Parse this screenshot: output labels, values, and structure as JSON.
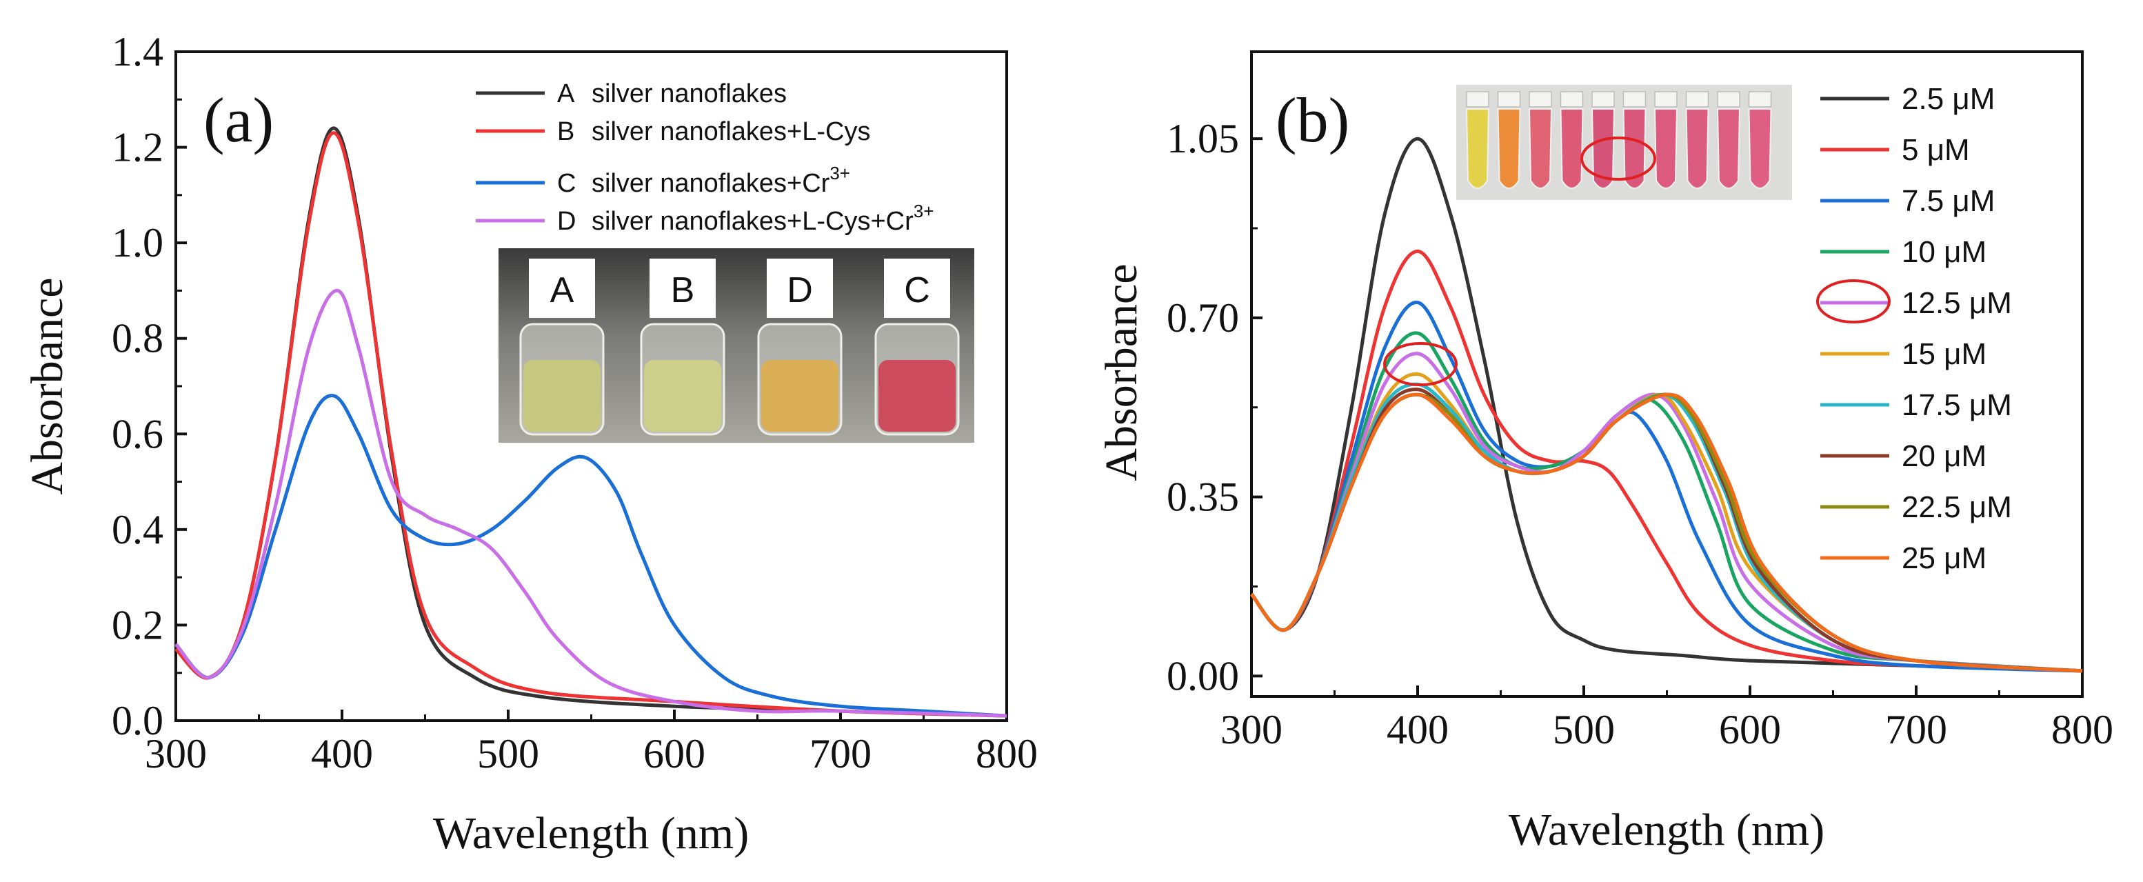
{
  "chart_data": [
    {
      "panel_label": "(a)",
      "type": "line",
      "xlabel": "Wavelength (nm)",
      "ylabel": "Absorbance",
      "xlim": [
        300,
        800
      ],
      "ylim": [
        0,
        1.4
      ],
      "xticks": [
        300,
        400,
        500,
        600,
        700,
        800
      ],
      "yticks": [
        0.0,
        0.2,
        0.4,
        0.6,
        0.8,
        1.0,
        1.2,
        1.4
      ],
      "grid": false,
      "legend_position": "top-right",
      "series": [
        {
          "name": "A",
          "label": "silver nanoflakes",
          "color": "#333333",
          "x": [
            300,
            320,
            340,
            360,
            380,
            395,
            410,
            430,
            450,
            480,
            520,
            600,
            700,
            800
          ],
          "y": [
            0.15,
            0.09,
            0.2,
            0.55,
            1.05,
            1.24,
            1.05,
            0.55,
            0.2,
            0.09,
            0.05,
            0.03,
            0.02,
            0.01
          ]
        },
        {
          "name": "B",
          "label": "silver nanoflakes+L-Cys",
          "color": "#ee3333",
          "x": [
            300,
            320,
            340,
            360,
            380,
            395,
            410,
            430,
            450,
            480,
            520,
            600,
            700,
            800
          ],
          "y": [
            0.15,
            0.09,
            0.2,
            0.55,
            1.04,
            1.23,
            1.04,
            0.56,
            0.22,
            0.11,
            0.06,
            0.04,
            0.02,
            0.01
          ]
        },
        {
          "name": "C",
          "label": "silver nanoflakes+Cr",
          "label_sup": "3+",
          "color": "#1a6fd6",
          "x": [
            300,
            320,
            340,
            360,
            380,
            395,
            410,
            430,
            450,
            470,
            490,
            510,
            530,
            547,
            565,
            580,
            600,
            630,
            660,
            700,
            750,
            800
          ],
          "y": [
            0.16,
            0.09,
            0.18,
            0.4,
            0.62,
            0.68,
            0.6,
            0.44,
            0.38,
            0.37,
            0.4,
            0.46,
            0.53,
            0.55,
            0.48,
            0.35,
            0.2,
            0.09,
            0.05,
            0.03,
            0.02,
            0.01
          ]
        },
        {
          "name": "D",
          "label": "silver nanoflakes+L-Cys+Cr",
          "label_sup": "3+",
          "color": "#c86ee6",
          "x": [
            300,
            320,
            340,
            360,
            380,
            397,
            410,
            430,
            450,
            470,
            490,
            510,
            530,
            560,
            600,
            650,
            700,
            800
          ],
          "y": [
            0.16,
            0.09,
            0.19,
            0.45,
            0.78,
            0.9,
            0.78,
            0.5,
            0.43,
            0.4,
            0.36,
            0.27,
            0.17,
            0.08,
            0.04,
            0.02,
            0.02,
            0.01
          ]
        }
      ],
      "inset": {
        "description": "photo of four vials",
        "vial_labels": [
          "A",
          "B",
          "D",
          "C"
        ],
        "vial_colors": [
          "#c7c87f",
          "#cdd08a",
          "#d9ae55",
          "#cc4b5c"
        ]
      }
    },
    {
      "panel_label": "(b)",
      "type": "line",
      "xlabel": "Wavelength (nm)",
      "ylabel": "Absorbance",
      "xlim": [
        300,
        800
      ],
      "ylim": [
        -0.04,
        1.22
      ],
      "xticks": [
        300,
        400,
        500,
        600,
        700,
        800
      ],
      "yticks": [
        0.0,
        0.35,
        0.7,
        1.05
      ],
      "ytick_labels": [
        "0.00",
        "0.35",
        "0.70",
        "1.05"
      ],
      "grid": false,
      "legend_position": "right",
      "series": [
        {
          "name": "2.5 μM",
          "color": "#333333",
          "x": [
            300,
            320,
            340,
            360,
            380,
            400,
            420,
            440,
            460,
            480,
            500,
            520,
            560,
            600,
            700,
            800
          ],
          "y": [
            0.16,
            0.09,
            0.2,
            0.52,
            0.9,
            1.05,
            0.9,
            0.62,
            0.3,
            0.12,
            0.07,
            0.05,
            0.04,
            0.03,
            0.02,
            0.01
          ]
        },
        {
          "name": "5 μM",
          "color": "#ee3333",
          "x": [
            300,
            320,
            340,
            360,
            380,
            400,
            420,
            440,
            460,
            480,
            500,
            515,
            530,
            550,
            570,
            600,
            650,
            700,
            800
          ],
          "y": [
            0.16,
            0.09,
            0.2,
            0.45,
            0.72,
            0.83,
            0.72,
            0.55,
            0.45,
            0.42,
            0.42,
            0.4,
            0.33,
            0.22,
            0.12,
            0.06,
            0.03,
            0.02,
            0.01
          ]
        },
        {
          "name": "7.5 μM",
          "color": "#1a6fd6",
          "x": [
            300,
            320,
            340,
            360,
            380,
            400,
            420,
            440,
            460,
            480,
            500,
            520,
            532,
            550,
            570,
            600,
            650,
            700,
            800
          ],
          "y": [
            0.16,
            0.09,
            0.2,
            0.42,
            0.64,
            0.73,
            0.62,
            0.48,
            0.42,
            0.41,
            0.44,
            0.5,
            0.51,
            0.42,
            0.26,
            0.1,
            0.04,
            0.02,
            0.01
          ]
        },
        {
          "name": "10 μM",
          "color": "#1aa462",
          "x": [
            300,
            320,
            340,
            360,
            380,
            400,
            420,
            440,
            460,
            480,
            500,
            520,
            540,
            560,
            580,
            600,
            650,
            700,
            800
          ],
          "y": [
            0.16,
            0.09,
            0.2,
            0.4,
            0.6,
            0.67,
            0.58,
            0.46,
            0.41,
            0.41,
            0.44,
            0.51,
            0.54,
            0.46,
            0.3,
            0.14,
            0.05,
            0.03,
            0.01
          ]
        },
        {
          "name": "12.5 μM",
          "color": "#c86ee6",
          "x": [
            300,
            320,
            340,
            360,
            380,
            400,
            420,
            440,
            460,
            480,
            500,
            520,
            543,
            560,
            580,
            600,
            650,
            700,
            800
          ],
          "y": [
            0.16,
            0.09,
            0.2,
            0.39,
            0.57,
            0.63,
            0.56,
            0.45,
            0.41,
            0.4,
            0.44,
            0.51,
            0.55,
            0.49,
            0.34,
            0.18,
            0.06,
            0.03,
            0.01
          ]
        },
        {
          "name": "15 μM",
          "color": "#e3a11b",
          "x": [
            300,
            320,
            340,
            360,
            380,
            400,
            420,
            440,
            460,
            480,
            500,
            520,
            545,
            560,
            580,
            600,
            650,
            700,
            800
          ],
          "y": [
            0.16,
            0.09,
            0.2,
            0.38,
            0.54,
            0.59,
            0.53,
            0.44,
            0.4,
            0.4,
            0.43,
            0.5,
            0.55,
            0.5,
            0.37,
            0.21,
            0.07,
            0.03,
            0.01
          ]
        },
        {
          "name": "17.5 μM",
          "color": "#2ab7c9",
          "x": [
            300,
            320,
            340,
            360,
            380,
            400,
            420,
            440,
            460,
            480,
            500,
            520,
            547,
            565,
            585,
            605,
            650,
            700,
            800
          ],
          "y": [
            0.16,
            0.09,
            0.2,
            0.38,
            0.53,
            0.57,
            0.52,
            0.44,
            0.4,
            0.4,
            0.43,
            0.5,
            0.55,
            0.5,
            0.36,
            0.2,
            0.07,
            0.03,
            0.01
          ]
        },
        {
          "name": "20 μM",
          "color": "#8a3a2a",
          "x": [
            300,
            320,
            340,
            360,
            380,
            400,
            420,
            440,
            460,
            480,
            500,
            520,
            548,
            565,
            585,
            605,
            650,
            700,
            800
          ],
          "y": [
            0.16,
            0.09,
            0.2,
            0.37,
            0.52,
            0.56,
            0.51,
            0.43,
            0.4,
            0.4,
            0.43,
            0.5,
            0.55,
            0.51,
            0.37,
            0.21,
            0.07,
            0.03,
            0.01
          ]
        },
        {
          "name": "22.5 μM",
          "color": "#8a8a12",
          "x": [
            300,
            320,
            340,
            360,
            380,
            400,
            420,
            440,
            460,
            480,
            500,
            520,
            548,
            565,
            585,
            605,
            650,
            700,
            800
          ],
          "y": [
            0.16,
            0.09,
            0.2,
            0.37,
            0.51,
            0.55,
            0.51,
            0.43,
            0.4,
            0.4,
            0.43,
            0.5,
            0.55,
            0.51,
            0.38,
            0.22,
            0.08,
            0.03,
            0.01
          ]
        },
        {
          "name": "25 μM",
          "color": "#f26a1b",
          "x": [
            300,
            320,
            340,
            360,
            380,
            400,
            420,
            440,
            460,
            480,
            500,
            520,
            550,
            567,
            587,
            607,
            650,
            700,
            800
          ],
          "y": [
            0.16,
            0.09,
            0.2,
            0.37,
            0.51,
            0.55,
            0.5,
            0.43,
            0.4,
            0.4,
            0.43,
            0.5,
            0.55,
            0.51,
            0.38,
            0.22,
            0.08,
            0.03,
            0.01
          ]
        }
      ],
      "inset": {
        "description": "photo of ten vials",
        "vial_colors": [
          "#e2d24a",
          "#ec8c38",
          "#e06473",
          "#dd5a77",
          "#d65479",
          "#d8577a",
          "#db5a7e",
          "#dc5c80",
          "#dd5d81",
          "#de5f83"
        ]
      }
    }
  ]
}
